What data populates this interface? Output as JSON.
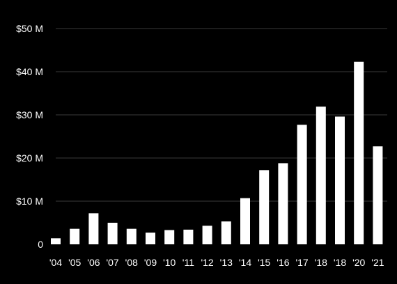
{
  "chart_data": {
    "type": "bar",
    "categories": [
      "'04",
      "'05",
      "'06",
      "'07",
      "'08",
      "'09",
      "'10",
      "'11",
      "'12",
      "'13",
      "'14",
      "'15",
      "'16",
      "'17",
      "'18",
      "'18",
      "'20",
      "'21"
    ],
    "values": [
      1.4,
      3.6,
      7.2,
      5.0,
      3.6,
      2.7,
      3.3,
      3.4,
      4.3,
      5.3,
      10.7,
      17.2,
      18.8,
      27.7,
      31.9,
      29.6,
      42.3,
      22.7
    ],
    "title": "",
    "xlabel": "",
    "ylabel": "",
    "ylim": [
      0,
      50
    ],
    "yticks": [
      0,
      10,
      20,
      30,
      40,
      50
    ],
    "ytick_labels": [
      "0",
      "$10 M",
      "$20 M",
      "$30 M",
      "$40 M",
      "$50 M"
    ],
    "grid": true,
    "colors": {
      "background": "#000000",
      "bar": "#ffffff",
      "text": "#ffffff",
      "grid": "#3a3a3a"
    }
  }
}
